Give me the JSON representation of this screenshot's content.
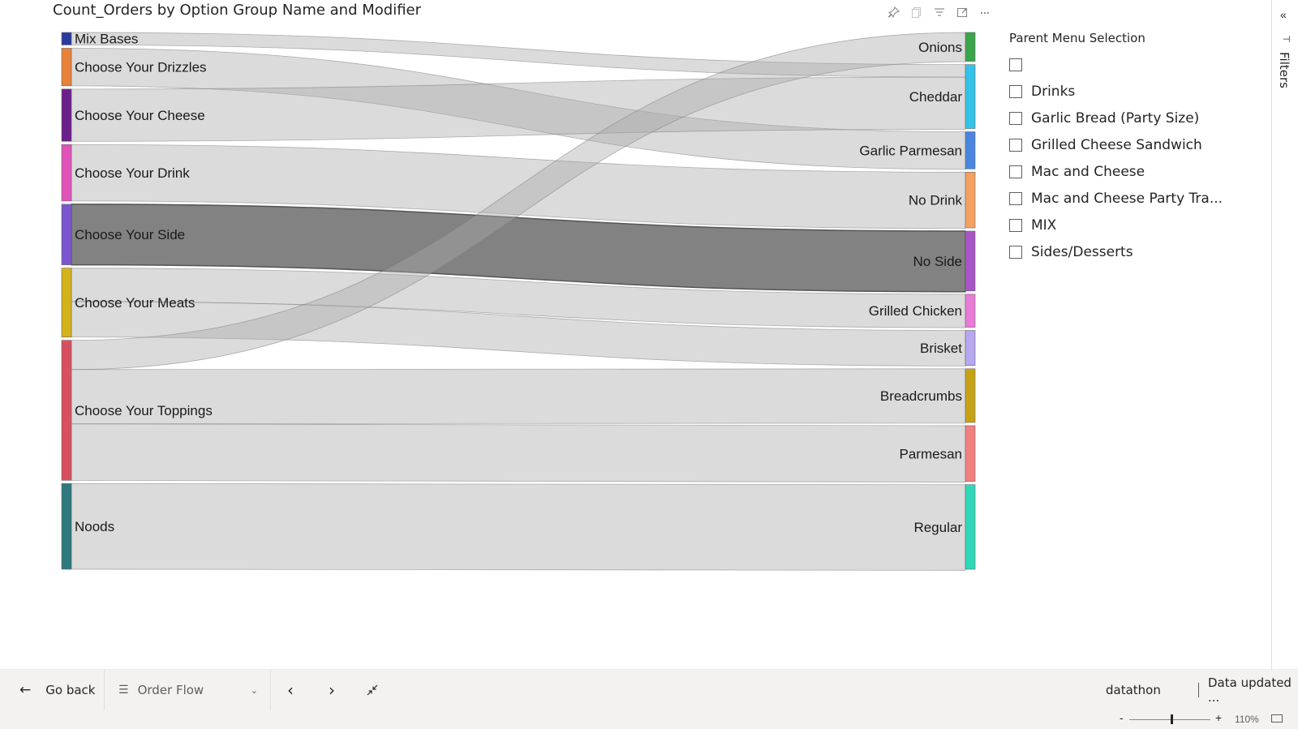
{
  "visual": {
    "title": "Count_Orders by Option Group Name and Modifier",
    "header_icons": [
      "pin-icon",
      "copy-icon",
      "filter-icon",
      "focus-mode-icon",
      "more-options-icon"
    ]
  },
  "chart_data": {
    "type": "sankey",
    "sources": [
      {
        "name": "Mix Bases",
        "color": "#2b3a9e"
      },
      {
        "name": "Choose Your Drizzles",
        "color": "#e8823a"
      },
      {
        "name": "Choose Your Cheese",
        "color": "#6b1f8a"
      },
      {
        "name": "Choose Your Drink",
        "color": "#e052b8"
      },
      {
        "name": "Choose Your Side",
        "color": "#7b55d0"
      },
      {
        "name": "Choose Your Meats",
        "color": "#d4b21c"
      },
      {
        "name": "Choose Your Toppings",
        "color": "#d85060"
      },
      {
        "name": "Noods",
        "color": "#2f7a7e"
      }
    ],
    "targets": [
      {
        "name": "Onions",
        "color": "#3aa54a"
      },
      {
        "name": "Cheddar",
        "color": "#33c2e8"
      },
      {
        "name": "Garlic Parmesan",
        "color": "#4a86e0"
      },
      {
        "name": "No Drink",
        "color": "#f4a060"
      },
      {
        "name": "No Side",
        "color": "#a855c8"
      },
      {
        "name": "Grilled Chicken",
        "color": "#e87ad8"
      },
      {
        "name": "Brisket",
        "color": "#b7a6f0"
      },
      {
        "name": "Breadcrumbs",
        "color": "#c8a216"
      },
      {
        "name": "Parmesan",
        "color": "#f28080"
      },
      {
        "name": "Regular",
        "color": "#2fd8b8"
      }
    ],
    "links": [
      {
        "source": "Mix Bases",
        "target": "Cheddar",
        "value": 6
      },
      {
        "source": "Choose Your Drizzles",
        "target": "Garlic Parmesan",
        "value": 18
      },
      {
        "source": "Choose Your Cheese",
        "target": "Cheddar",
        "value": 25
      },
      {
        "source": "Choose Your Drink",
        "target": "No Drink",
        "value": 27
      },
      {
        "source": "Choose Your Side",
        "target": "No Side",
        "value": 29
      },
      {
        "source": "Choose Your Meats",
        "target": "Grilled Chicken",
        "value": 16
      },
      {
        "source": "Choose Your Meats",
        "target": "Brisket",
        "value": 17
      },
      {
        "source": "Choose Your Toppings",
        "target": "Onions",
        "value": 14
      },
      {
        "source": "Choose Your Toppings",
        "target": "Breadcrumbs",
        "value": 26
      },
      {
        "source": "Choose Your Toppings",
        "target": "Parmesan",
        "value": 27
      },
      {
        "source": "Noods",
        "target": "Regular",
        "value": 41
      }
    ],
    "highlighted_link": {
      "source": "Choose Your Side",
      "target": "No Side"
    }
  },
  "slicer": {
    "title": "Parent Menu Selection",
    "items": [
      {
        "label": "",
        "checked": false
      },
      {
        "label": "Drinks",
        "checked": false
      },
      {
        "label": "Garlic Bread (Party Size)",
        "checked": false
      },
      {
        "label": "Grilled Cheese Sandwich",
        "checked": false
      },
      {
        "label": "Mac and Cheese",
        "checked": false
      },
      {
        "label": "Mac and Cheese Party Tra...",
        "checked": false
      },
      {
        "label": "MIX",
        "checked": false
      },
      {
        "label": "Sides/Desserts",
        "checked": false
      }
    ]
  },
  "filters_pane": {
    "label": "Filters",
    "icon": "collapse-chevron-icon"
  },
  "bottom_bar": {
    "back_label": "Go back",
    "page_label": "Order Flow",
    "workspace": "datathon",
    "status": "Data updated ..."
  },
  "zoom": {
    "level": "110%",
    "value": 110
  }
}
